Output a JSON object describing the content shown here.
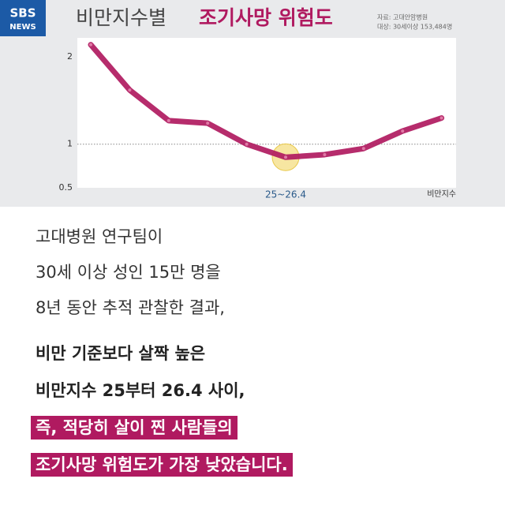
{
  "logo": [
    "SBS",
    "NEWS"
  ],
  "source": [
    "자료: 고대안암병원",
    "대상: 30세이상 153,484명"
  ],
  "chart_data": {
    "type": "line",
    "title": "비만지수별",
    "title_highlight": "조기사망 위험도",
    "categories": [
      null,
      null,
      null,
      null,
      null,
      "25~26.4",
      null,
      null,
      null,
      null
    ],
    "x_label": "비만지수",
    "series": [
      {
        "color": "#b01a60",
        "values": [
          2.14,
          1.62,
          1.27,
          1.24,
          1.0,
          0.85,
          0.88,
          0.95,
          1.15,
          1.3
        ]
      }
    ],
    "ylim": [
      0.5,
      2.2
    ],
    "yticks": [
      0.5,
      1,
      2
    ],
    "reference_line": 1,
    "highlight_index": 5
  },
  "body": {
    "lines": [
      "고대병원 연구팀이",
      "30세 이상 성인 15만 명을",
      "8년 동안 추적 관찰한 결과,"
    ],
    "bold_lines": [
      "비만 기준보다 살짝 높은",
      "비만지수 25부터 26.4 사이,"
    ],
    "highlight_lines": [
      "즉, 적당히 살이 찐 사람들의",
      "조기사망 위험도가 가장 낮았습니다."
    ]
  }
}
